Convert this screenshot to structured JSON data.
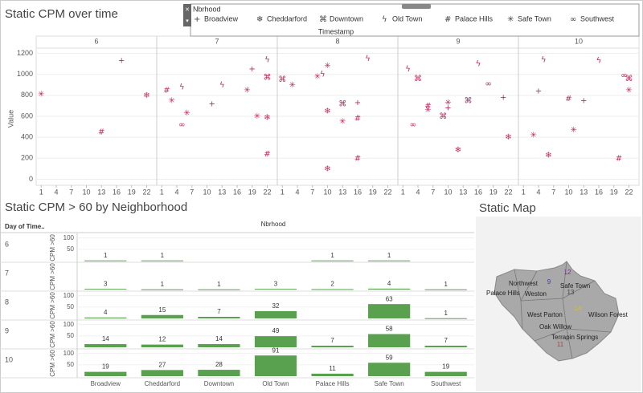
{
  "chart_data": [
    {
      "type": "scatter",
      "title": "Static CPM over time",
      "y_label": "Value",
      "facets": [
        6,
        7,
        8,
        9,
        10
      ],
      "xlim": [
        0,
        24
      ],
      "xticks": [
        1,
        4,
        7,
        10,
        13,
        16,
        19,
        22
      ],
      "ylim": [
        -50,
        1250
      ],
      "yticks": [
        0,
        200,
        400,
        600,
        800,
        1000,
        1200
      ],
      "grid": true,
      "color": "#c2285e",
      "legend_title": "Nbrhood",
      "legend_caption": "Timestamp",
      "series": [
        {
          "name": "Broadview",
          "marker": "+",
          "month": [
            6,
            7,
            7,
            8,
            9,
            9,
            10,
            10
          ],
          "day": [
            17,
            11,
            19,
            16,
            10,
            21,
            4,
            13
          ],
          "values": [
            1130,
            720,
            1050,
            730,
            680,
            780,
            840,
            750
          ]
        },
        {
          "name": "Cheddarford",
          "marker": "❄",
          "month": [
            6,
            7,
            8,
            8,
            9,
            9,
            10
          ],
          "day": [
            22,
            22,
            10,
            10,
            12,
            22,
            6
          ],
          "values": [
            800,
            590,
            650,
            100,
            280,
            400,
            230
          ]
        },
        {
          "name": "Downtown",
          "marker": "⌘",
          "month": [
            7,
            8,
            8,
            9,
            9,
            9,
            10
          ],
          "day": [
            22,
            1,
            13,
            4,
            9,
            14,
            22
          ],
          "values": [
            970,
            950,
            720,
            960,
            600,
            750,
            960
          ]
        },
        {
          "name": "Old Town",
          "marker": "ϟ",
          "month": [
            7,
            7,
            7,
            8,
            8,
            9,
            9,
            10,
            10
          ],
          "day": [
            5,
            13,
            22,
            9,
            18,
            2,
            16,
            5,
            16
          ],
          "values": [
            880,
            900,
            1140,
            1000,
            1150,
            1050,
            1100,
            1140,
            1130
          ]
        },
        {
          "name": "Palace Hills",
          "marker": "#",
          "month": [
            6,
            7,
            7,
            8,
            8,
            9,
            10,
            10
          ],
          "day": [
            13,
            2,
            22,
            16,
            16,
            6,
            10,
            20
          ],
          "values": [
            450,
            850,
            240,
            580,
            200,
            700,
            770,
            200
          ]
        },
        {
          "name": "Safe Town",
          "marker": "✳",
          "month": [
            6,
            7,
            7,
            7,
            7,
            8,
            8,
            8,
            8,
            9,
            9,
            10,
            10,
            10
          ],
          "day": [
            1,
            3,
            6,
            18,
            20,
            3,
            8,
            10,
            13,
            6,
            10,
            3,
            11,
            22
          ],
          "values": [
            810,
            750,
            630,
            850,
            600,
            900,
            980,
            1080,
            550,
            660,
            730,
            420,
            470,
            850
          ]
        },
        {
          "name": "Southwest",
          "marker": "∞",
          "month": [
            7,
            9,
            9,
            10
          ],
          "day": [
            5,
            3,
            18,
            21
          ],
          "values": [
            520,
            520,
            910,
            990
          ]
        }
      ]
    },
    {
      "type": "bar",
      "title": "Static CPM > 60 by Neighborhood",
      "row_title": "Day of Time..",
      "column_title": "Nbrhood",
      "y_label": "CPM >60",
      "color": "#59a14f",
      "ylim": [
        0,
        120
      ],
      "categories": [
        "Broadview",
        "Cheddarford",
        "Downtown",
        "Old Town",
        "Palace Hills",
        "Safe Town",
        "Southwest"
      ],
      "rows": [
        {
          "label": 6,
          "yticks": [
            50,
            100
          ],
          "values": [
            1,
            1,
            null,
            null,
            1,
            1,
            null
          ]
        },
        {
          "label": 7,
          "yticks": [],
          "values": [
            3,
            1,
            1,
            3,
            2,
            4,
            1
          ]
        },
        {
          "label": 8,
          "yticks": [
            50,
            100
          ],
          "values": [
            4,
            15,
            7,
            32,
            null,
            63,
            1
          ]
        },
        {
          "label": 9,
          "yticks": [
            50,
            100
          ],
          "values": [
            14,
            12,
            14,
            49,
            7,
            58,
            7
          ]
        },
        {
          "label": 10,
          "yticks": [
            50,
            100
          ],
          "values": [
            19,
            27,
            28,
            91,
            11,
            59,
            19
          ]
        }
      ]
    }
  ],
  "map": {
    "title": "Static Map",
    "regions": [
      "Northwest",
      "Palace Hills",
      "Weston",
      "Safe Town",
      "West Parton",
      "Oak Willow",
      "Wilson Forest",
      "Terrapin Springs"
    ],
    "markers": [
      12,
      9,
      13,
      14,
      11
    ]
  }
}
